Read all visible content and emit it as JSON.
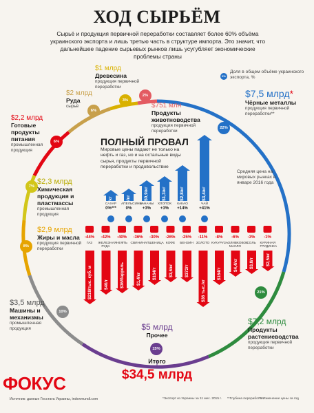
{
  "title": "ХОД СЫРЬЁМ",
  "intro": "Сырьё и продукция первичной переработки составляет более 60% объёма украинского экспорта и лишь третью часть в структуре импорта. Это значит, что дальнейшее падение сырьевых рынков лишь усугубляет экономические проблемы страны",
  "legend_share": "Доля в общем объёме украинского экспорта, %",
  "legend_share_dot": "0%",
  "colors": {
    "red": "#e30613",
    "blue": "#2471c7",
    "purple": "#6a3d8f",
    "yellow": "#d2c61a",
    "gray": "#8c8c8c",
    "brown": "#c8a04b"
  },
  "segments": [
    {
      "value": "$7,5 млрд",
      "star": "*",
      "title": "Чёрные металлы",
      "sub": "продукция первичной переработки**",
      "pct": "22%",
      "color": "#2471c7"
    },
    {
      "value": "$7,2 млрд",
      "title": "Продукты растениеводства",
      "sub": "продукция первичной переработки",
      "pct": "21%",
      "color": "#2e8b3e"
    },
    {
      "value": "$5 млрд",
      "title": "Прочее",
      "sub": "",
      "pct": "15%",
      "color": "#6a3d8f"
    },
    {
      "value": "$3,5 млрд",
      "title": "Машины и механизмы",
      "sub": "промышленная продукция",
      "pct": "10%",
      "color": "#8c8c8c"
    },
    {
      "value": "$2,9 млрд",
      "title": "Жиры и масла",
      "sub": "продукция первичной переработки",
      "pct": "8%",
      "color": "#e6a400"
    },
    {
      "value": "$2,3 млрд",
      "title": "Химическая продукция и пластмассы",
      "sub": "промышленная продукция",
      "pct": "7%",
      "color": "#d2c61a"
    },
    {
      "value": "$2,2 млрд",
      "title": "Готовые продукты питания",
      "sub": "промышленная продукция",
      "pct": "6%",
      "color": "#e30613"
    },
    {
      "value": "$2 млрд",
      "title": "Руда",
      "sub": "сырьё",
      "pct": "6%",
      "color": "#c8a04b"
    },
    {
      "value": "$1 млрд",
      "title": "Древесина",
      "sub": "продукция первичной переработки",
      "pct": "3%",
      "color": "#d9b100"
    },
    {
      "value": "$751 млн",
      "title": "Продукты животноводства",
      "sub": "продукция первичной переработки",
      "pct": "2%",
      "color": "#e35b62"
    }
  ],
  "middle": {
    "heading": "ПОЛНЫЙ ПРОВАЛ",
    "text": "Мировые цены падают не только на нефть и газ, но и на остальные виды сырья, продукты первичной переработки и продовольствие",
    "price_note": "Средняя цена на мировых рынках в январе 2016 года"
  },
  "risers": [
    {
      "price": "$0,3/кг",
      "name": "САХАР",
      "change": "0%***"
    },
    {
      "price": "$0,8/кг",
      "name": "АПЕЛЬСИНЫ",
      "change": "0%"
    },
    {
      "price": "$0,9/кг",
      "name": "БАНАНЫ",
      "change": "+3%"
    },
    {
      "price": "$1,3/кг",
      "name": "ХЛОПОК",
      "change": "+3%"
    },
    {
      "price": "$2,8/кг",
      "name": "КАКАО",
      "change": "+14%"
    },
    {
      "price": "$3,4/кг",
      "name": "ЧАЙ",
      "change": "+41%"
    }
  ],
  "fallers": [
    {
      "change": "-44%",
      "name": "ГАЗ",
      "price": "$218/тыс. куб. м"
    },
    {
      "change": "-42%",
      "name": "ЖЕЛЕЗНАЯ РУДА",
      "price": "$40/т"
    },
    {
      "change": "-40%",
      "name": "НЕФТЬ",
      "price": "$36/баррель"
    },
    {
      "change": "-36%",
      "name": "СВИНИНА",
      "price": "$1,4/кг"
    },
    {
      "change": "-30%",
      "name": "ПШЕНИЦА",
      "price": "$164/т"
    },
    {
      "change": "-26%",
      "name": "КОФЕ",
      "price": "$3,6/кг"
    },
    {
      "change": "-25%",
      "name": "БЕНЗИН",
      "price": "$372/т"
    },
    {
      "change": "-11%",
      "name": "ЗОЛОТО",
      "price": "$36 тыс./кг"
    },
    {
      "change": "-8%",
      "name": "КУКУРУЗА",
      "price": "$164/т"
    },
    {
      "change": "-6%",
      "name": "ОЛИВКОВОЕ МАСЛО",
      "price": "$4,4/кг"
    },
    {
      "change": "-3%",
      "name": "СОЛЬ",
      "price": "$3,8/т"
    },
    {
      "change": "-1%",
      "name": "КУРИНАЯ ГРУДИНКА",
      "price": "$2,5/кг"
    }
  ],
  "total": {
    "label": "Итого",
    "value": "$34,5 млрд"
  },
  "logo": "ФОКУС",
  "footer": {
    "source": "Источник: данные Госстата Украины, indexmundi.com",
    "note1": "*Экспорт из Украины за 11 мес. 2015 г.",
    "note2": "**Глубина переработки",
    "note3": "***Изменение цены за год"
  }
}
